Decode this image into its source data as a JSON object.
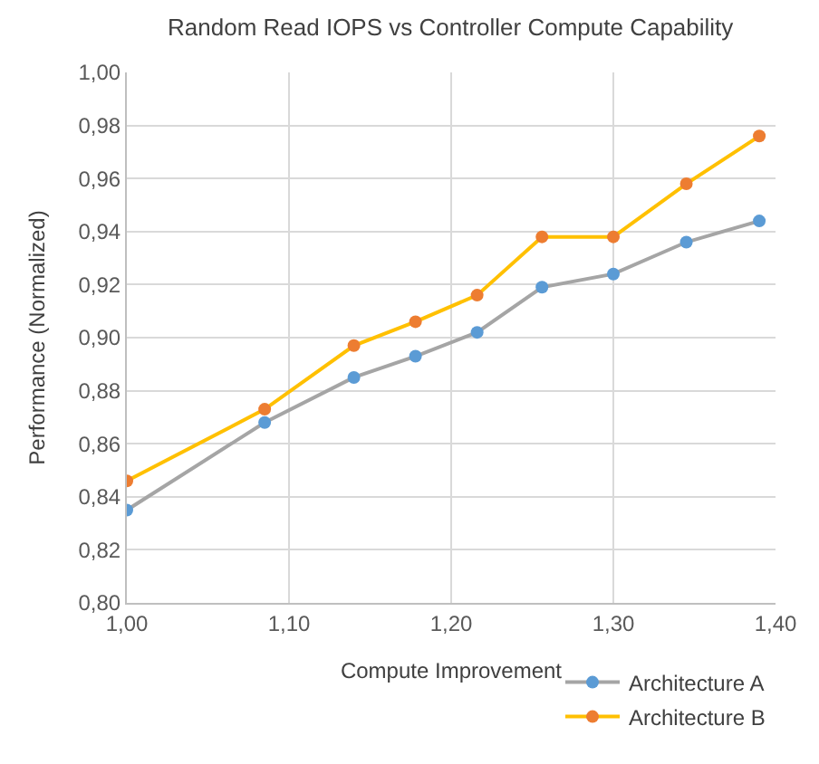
{
  "chart_data": {
    "type": "line",
    "title": "Random Read IOPS vs Controller Compute Capability",
    "xlabel": "Compute Improvement",
    "ylabel": "Performance (Normalized)",
    "x": [
      1.0,
      1.085,
      1.14,
      1.178,
      1.216,
      1.256,
      1.3,
      1.345,
      1.39
    ],
    "series": [
      {
        "name": "Architecture A",
        "color": "#a5a5a5",
        "colors": [
          "#5b9bd5",
          "#5b9bd5",
          "#5b9bd5",
          "#5b9bd5",
          "#5b9bd5",
          "#5b9bd5",
          "#5b9bd5",
          "#5b9bd5",
          "#5b9bd5"
        ],
        "values": [
          0.835,
          0.868,
          0.885,
          0.893,
          0.902,
          0.919,
          0.924,
          0.936,
          0.944
        ]
      },
      {
        "name": "Architecture B",
        "color": "#ffc000",
        "colors": [
          "#ed7d31",
          "#ed7d31",
          "#ed7d31",
          "#ed7d31",
          "#ed7d31",
          "#ed7d31",
          "#ed7d31",
          "#ed7d31",
          "#ed7d31"
        ],
        "values": [
          0.846,
          0.873,
          0.897,
          0.906,
          0.916,
          0.938,
          0.938,
          0.958,
          0.976
        ]
      }
    ],
    "xlim": [
      1.0,
      1.4
    ],
    "xticks": [
      {
        "value": 1.0,
        "label": "1,00"
      },
      {
        "value": 1.1,
        "label": "1,10"
      },
      {
        "value": 1.2,
        "label": "1,20"
      },
      {
        "value": 1.3,
        "label": "1,30"
      },
      {
        "value": 1.4,
        "label": "1,40"
      }
    ],
    "ylim": [
      0.8,
      1.0
    ],
    "yticks": [
      {
        "value": 0.8,
        "label": "0,80"
      },
      {
        "value": 0.82,
        "label": "0,82"
      },
      {
        "value": 0.84,
        "label": "0,84"
      },
      {
        "value": 0.86,
        "label": "0,86"
      },
      {
        "value": 0.88,
        "label": "0,88"
      },
      {
        "value": 0.9,
        "label": "0,90"
      },
      {
        "value": 0.92,
        "label": "0,92"
      },
      {
        "value": 0.94,
        "label": "0,94"
      },
      {
        "value": 0.96,
        "label": "0,96"
      },
      {
        "value": 0.98,
        "label": "0,98"
      },
      {
        "value": 1.0,
        "label": "1,00"
      }
    ],
    "grid": true,
    "legend": "bottom right",
    "marker": "circle",
    "line_style": "solid"
  }
}
